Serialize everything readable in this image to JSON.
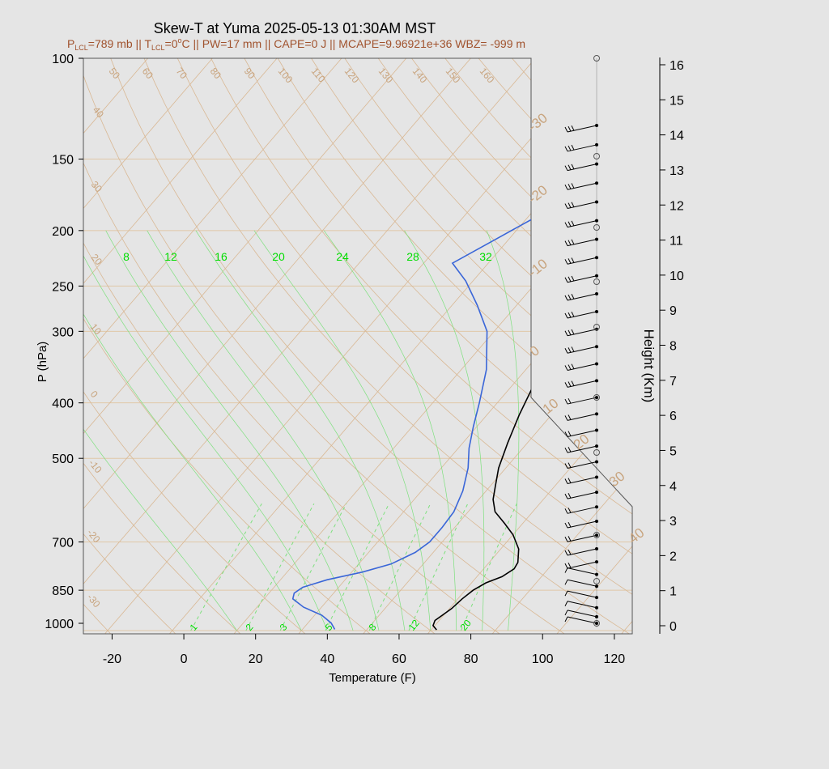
{
  "chart_data": {
    "type": "line",
    "title": "Skew-T at Yuma 2025-05-13 01:30AM MST",
    "subtitle": {
      "lcl_p_label": "P",
      "lcl_p_sub": "LCL",
      "lcl_p_value": "=789 mb || ",
      "lcl_t_label": "T",
      "lcl_t_sub": "LCL",
      "lcl_t_value": "=0",
      "lcl_t_unit": "C",
      "rest": " || PW=17 mm || CAPE=0 J || MCAPE=9.96921e+36 WBZ= -999 m"
    },
    "xlabel": "Temperature (F)",
    "ylabel": "P (hPa)",
    "y2label": "Height (Km)",
    "xlim": [
      -28,
      125
    ],
    "ylim_hpa": [
      1000,
      100
    ],
    "x_ticks": [
      "-20",
      "0",
      "20",
      "40",
      "60",
      "80",
      "100",
      "120"
    ],
    "x_tick_values": [
      -20,
      0,
      20,
      40,
      60,
      80,
      100,
      120
    ],
    "p_ticks": [
      "100",
      "150",
      "200",
      "250",
      "300",
      "400",
      "500",
      "700",
      "850",
      "1000"
    ],
    "p_tick_values": [
      100,
      150,
      200,
      250,
      300,
      400,
      500,
      700,
      850,
      1000
    ],
    "height_ticks": [
      "0",
      "1",
      "2",
      "3",
      "4",
      "5",
      "6",
      "7",
      "8",
      "9",
      "10",
      "11",
      "12",
      "13",
      "14",
      "15",
      "16"
    ],
    "height_tick_values": [
      0,
      1,
      2,
      3,
      4,
      5,
      6,
      7,
      8,
      9,
      10,
      11,
      12,
      13,
      14,
      15,
      16
    ],
    "temperature_series": {
      "name": "Temperature",
      "color": "#000000",
      "points_F_hPa": [
        [
          69.5,
          997
        ],
        [
          67.5,
          980
        ],
        [
          66.8,
          960
        ],
        [
          67.6,
          940
        ],
        [
          68.6,
          915
        ],
        [
          69.2,
          880
        ],
        [
          70.2,
          850
        ],
        [
          72.0,
          825
        ],
        [
          75.0,
          805
        ],
        [
          76.5,
          780
        ],
        [
          76.0,
          760
        ],
        [
          73.0,
          720
        ],
        [
          68.0,
          680
        ],
        [
          63.0,
          650
        ],
        [
          57.5,
          620
        ],
        [
          54.0,
          590
        ],
        [
          51.5,
          560
        ],
        [
          48.0,
          520
        ],
        [
          44.5,
          470
        ],
        [
          41.0,
          420
        ],
        [
          37.0,
          360
        ],
        [
          33.5,
          320
        ],
        [
          27.5,
          270
        ],
        [
          23.0,
          230
        ],
        [
          19.5,
          200
        ],
        [
          16.0,
          170
        ],
        [
          14.0,
          160
        ],
        [
          11.5,
          145
        ],
        [
          10.0,
          130
        ],
        [
          10.5,
          115
        ],
        [
          12.5,
          100
        ]
      ]
    },
    "dewpoint_series": {
      "name": "Dewpoint",
      "color": "#3a66d8",
      "points_F_hPa": [
        [
          41.0,
          995
        ],
        [
          38.5,
          970
        ],
        [
          34.0,
          940
        ],
        [
          27.0,
          910
        ],
        [
          22.0,
          880
        ],
        [
          21.0,
          860
        ],
        [
          22.0,
          840
        ],
        [
          27.0,
          815
        ],
        [
          35.0,
          790
        ],
        [
          41.0,
          765
        ],
        [
          45.0,
          730
        ],
        [
          46.5,
          700
        ],
        [
          46.5,
          660
        ],
        [
          46.0,
          620
        ],
        [
          43.5,
          570
        ],
        [
          39.5,
          520
        ],
        [
          35.0,
          480
        ],
        [
          31.0,
          440
        ],
        [
          27.0,
          400
        ],
        [
          21.0,
          350
        ],
        [
          12.0,
          300
        ],
        [
          3.0,
          270
        ],
        [
          -6.0,
          245
        ],
        [
          -14.0,
          228
        ],
        [
          -7.0,
          205
        ],
        [
          -2.0,
          190
        ],
        [
          0.0,
          170
        ],
        [
          0.5,
          155
        ],
        [
          0.0,
          135
        ],
        [
          1.5,
          118
        ],
        [
          3.0,
          100
        ]
      ]
    },
    "dry_adiabat_labels": [
      "-30",
      "-20",
      "-10",
      "0",
      "10",
      "20",
      "30",
      "40",
      "50",
      "60",
      "70",
      "80",
      "90",
      "100",
      "110",
      "120",
      "130",
      "140",
      "150",
      "160"
    ],
    "isotherm_labels": [
      "-30",
      "-20",
      "-10",
      "0",
      "10",
      "20",
      "30",
      "40"
    ],
    "mixing_ratio_labels_bottom": [
      "1",
      "2",
      "3",
      "5",
      "8",
      "12",
      "20"
    ],
    "mixing_ratio_labels_mid": [
      "8",
      "12",
      "16",
      "20",
      "24",
      "28",
      "32"
    ],
    "wind_barbs_count": 33,
    "colors": {
      "background": "#e5e5e5",
      "temperature": "#000000",
      "dewpoint": "#3a66d8",
      "isobar": "#e0c8a8",
      "dry_adiabat": "#d9b894",
      "moist_adiabat": "#7ee07e",
      "mixing_ratio_label": "#00dd00",
      "adiabat_label": "#c8a47e",
      "subtitle": "#a0522d"
    }
  }
}
